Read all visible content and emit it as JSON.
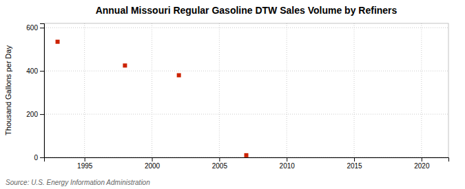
{
  "chart_data": {
    "type": "scatter",
    "title": "Annual Missouri Regular Gasoline DTW Sales Volume by Refiners",
    "y_label": "Thousand Gallons per Day",
    "annotations": [
      "Source: U.S. Energy Information Administration"
    ],
    "x": [
      1993,
      1998,
      2002,
      2007
    ],
    "values": [
      535,
      425,
      380,
      10
    ],
    "color": "#cc2200",
    "marker": "square",
    "xlim": [
      1992,
      2022
    ],
    "ylim": [
      0,
      620
    ],
    "xticks": [
      1995,
      2000,
      2005,
      2010,
      2015,
      2020
    ],
    "yticks": [
      0,
      200,
      400,
      600
    ],
    "grid": true
  }
}
